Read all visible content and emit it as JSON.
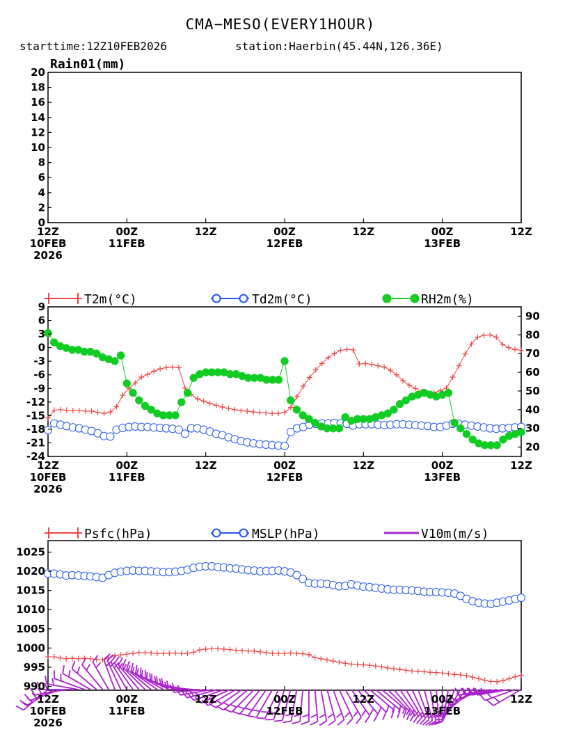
{
  "header": {
    "title": "CMA−MESO(EVERY1HOUR)",
    "subtitle_start": "starttime:12Z10FEB2026",
    "subtitle_station": "station:Haerbin(45.44N,126.36E)"
  },
  "x_axis": {
    "ticks": [
      {
        "hour": 0,
        "line1": "12Z",
        "line2": "10FEB",
        "line3": "2026"
      },
      {
        "hour": 12,
        "line1": "00Z",
        "line2": "11FEB",
        "line3": ""
      },
      {
        "hour": 24,
        "line1": "12Z",
        "line2": "",
        "line3": ""
      },
      {
        "hour": 36,
        "line1": "00Z",
        "line2": "12FEB",
        "line3": ""
      },
      {
        "hour": 48,
        "line1": "12Z",
        "line2": "",
        "line3": ""
      },
      {
        "hour": 60,
        "line1": "00Z",
        "line2": "13FEB",
        "line3": ""
      },
      {
        "hour": 72,
        "line1": "12Z",
        "line2": "",
        "line3": ""
      }
    ]
  },
  "colors": {
    "t2m": "#ee4444",
    "td2m": "#2255ee",
    "rh2m": "#11cc22",
    "psfc": "#ee4444",
    "mslp": "#2255ee",
    "wind": "#aa22cc"
  },
  "chart_data": [
    {
      "type": "bar",
      "title": "Rain01(mm)",
      "ylim": [
        0,
        20
      ],
      "yticks": [
        "0",
        "2",
        "4",
        "6",
        "8",
        "10",
        "12",
        "14",
        "16",
        "18",
        "20"
      ],
      "x_hours": [
        0,
        72
      ],
      "values": []
    },
    {
      "type": "line",
      "legend": {
        "t2m": "T2m(°C)",
        "td2m": "Td2m(°C)",
        "rh2m": "RH2m(%)"
      },
      "ylim_left": [
        -24,
        9
      ],
      "yticks_left": [
        "-24",
        "-21",
        "-18",
        "-15",
        "-12",
        "-9",
        "-6",
        "-3",
        "0",
        "3",
        "6",
        "9"
      ],
      "ylim_right": [
        15,
        95
      ],
      "yticks_right": [
        "20",
        "30",
        "40",
        "50",
        "60",
        "70",
        "80",
        "90"
      ],
      "series": [
        {
          "name": "T2m(°C)",
          "axis": "left",
          "marker": "plus",
          "values": [
            -15.5,
            -13.8,
            -13.7,
            -13.8,
            -13.9,
            -13.9,
            -14.0,
            -14.0,
            -14.3,
            -14.5,
            -14.2,
            -13.0,
            -10.5,
            -9.0,
            -7.8,
            -6.5,
            -5.9,
            -5.2,
            -4.7,
            -4.4,
            -4.3,
            -4.4,
            -8.9,
            -10.3,
            -11.3,
            -11.8,
            -12.3,
            -12.7,
            -13.1,
            -13.4,
            -13.7,
            -13.9,
            -14.0,
            -14.2,
            -14.3,
            -14.4,
            -14.5,
            -14.5,
            -14.3,
            -13.2,
            -10.8,
            -8.5,
            -6.6,
            -4.9,
            -3.5,
            -2.2,
            -1.3,
            -0.6,
            -0.4,
            -0.5,
            -3.6,
            -3.5,
            -3.7,
            -4.0,
            -4.3,
            -5.0,
            -6.0,
            -7.3,
            -8.3,
            -9.0,
            -9.7,
            -10.0,
            -9.9,
            -9.5,
            -8.9,
            -6.5,
            -4.0,
            -1.4,
            0.8,
            2.3,
            2.7,
            2.8,
            2.3,
            0.7,
            0.0,
            -0.4,
            -0.6
          ]
        },
        {
          "name": "Td2m(°C)",
          "axis": "left",
          "marker": "circle",
          "values": [
            -18.2,
            -16.7,
            -17.0,
            -17.3,
            -17.6,
            -17.8,
            -18.1,
            -18.4,
            -18.9,
            -19.5,
            -19.6,
            -18.1,
            -17.7,
            -17.5,
            -17.4,
            -17.5,
            -17.5,
            -17.6,
            -17.7,
            -17.8,
            -17.9,
            -18.1,
            -19.0,
            -17.8,
            -17.8,
            -18.1,
            -18.5,
            -19.0,
            -19.3,
            -19.8,
            -20.2,
            -20.6,
            -20.9,
            -21.1,
            -21.3,
            -21.4,
            -21.5,
            -21.6,
            -21.7,
            -18.6,
            -17.8,
            -17.5,
            -17.0,
            -16.8,
            -16.7,
            -16.7,
            -16.6,
            -16.7,
            -16.8,
            -17.2,
            -16.9,
            -16.9,
            -16.9,
            -17.0,
            -17.1,
            -17.0,
            -16.9,
            -16.9,
            -17.0,
            -17.1,
            -17.2,
            -17.3,
            -17.5,
            -17.5,
            -17.2,
            -16.8,
            -16.8,
            -17.0,
            -17.2,
            -17.4,
            -17.6,
            -17.8,
            -17.9,
            -17.8,
            -17.7,
            -17.6,
            -17.5
          ]
        },
        {
          "name": "RH2m(%)",
          "axis": "right",
          "marker": "dot",
          "values": [
            81,
            76,
            74,
            73,
            72,
            72,
            71,
            71,
            70,
            68,
            67,
            66,
            69,
            54,
            49,
            45,
            42,
            40,
            38,
            37,
            37,
            37,
            44,
            49,
            57,
            59,
            60,
            60,
            60,
            60,
            59,
            59,
            58,
            57,
            57,
            57,
            56,
            56,
            56,
            66,
            45,
            40,
            37,
            35,
            33,
            31,
            30,
            30,
            30,
            36,
            34,
            35,
            35,
            35,
            36,
            37,
            38,
            40,
            43,
            45,
            47,
            48,
            49,
            48,
            47,
            48,
            49,
            33,
            30,
            27,
            24,
            22,
            21,
            21,
            21,
            24,
            26,
            27,
            28
          ]
        }
      ]
    },
    {
      "type": "line",
      "legend": {
        "psfc": "Psfc(hPa)",
        "mslp": "MSLP(hPa)",
        "wind": "V10m(m/s)"
      },
      "ylim": [
        989,
        1028
      ],
      "yticks": [
        "990",
        "995",
        "1000",
        "1005",
        "1010",
        "1015",
        "1020",
        "1025"
      ],
      "series": [
        {
          "name": "Psfc(hPa)",
          "marker": "plus",
          "values": [
            997.7,
            997.7,
            997.4,
            997.2,
            997.3,
            997.2,
            997.3,
            997.2,
            997.0,
            996.9,
            997.4,
            998.0,
            998.2,
            998.4,
            998.6,
            998.8,
            998.8,
            998.7,
            998.6,
            998.6,
            998.6,
            998.7,
            998.6,
            998.6,
            998.9,
            999.5,
            999.7,
            999.8,
            999.8,
            999.7,
            999.6,
            999.4,
            999.3,
            999.2,
            999.2,
            999.0,
            998.8,
            998.6,
            998.6,
            998.6,
            998.7,
            998.6,
            998.5,
            998.3,
            997.5,
            997.2,
            996.9,
            996.6,
            996.3,
            996.0,
            995.8,
            995.7,
            995.6,
            995.5,
            995.3,
            995.1,
            994.8,
            994.6,
            994.4,
            994.2,
            994.0,
            993.9,
            993.8,
            993.7,
            993.6,
            993.5,
            993.3,
            993.1,
            993.0,
            992.8,
            992.4,
            992.0,
            991.6,
            991.3,
            991.2,
            991.5,
            992.0,
            992.5,
            992.9
          ]
        },
        {
          "name": "MSLP(hPa)",
          "marker": "circle",
          "values": [
            1019.4,
            1019.4,
            1019.2,
            1018.9,
            1019.0,
            1018.9,
            1018.8,
            1018.7,
            1018.5,
            1018.3,
            1019.0,
            1019.6,
            1019.9,
            1020.1,
            1020.2,
            1020.1,
            1020.1,
            1020.0,
            1019.9,
            1019.8,
            1019.8,
            1019.9,
            1020.1,
            1020.4,
            1020.9,
            1021.2,
            1021.3,
            1021.3,
            1021.1,
            1021.0,
            1020.8,
            1020.7,
            1020.5,
            1020.3,
            1020.2,
            1020.0,
            1020.1,
            1020.1,
            1020.2,
            1020.0,
            1019.7,
            1019.0,
            1018.0,
            1017.0,
            1016.8,
            1016.8,
            1016.7,
            1016.4,
            1016.1,
            1016.2,
            1016.6,
            1016.3,
            1016.0,
            1015.9,
            1015.7,
            1015.5,
            1015.3,
            1015.2,
            1015.2,
            1015.1,
            1015.0,
            1014.9,
            1014.7,
            1014.6,
            1014.6,
            1014.5,
            1014.4,
            1014.2,
            1013.6,
            1012.8,
            1012.2,
            1011.8,
            1011.6,
            1011.5,
            1011.8,
            1012.1,
            1012.4,
            1012.8,
            1013.1
          ]
        },
        {
          "name": "V10m(m/s)",
          "marker": "barb",
          "direction_deg": [
            230,
            240,
            250,
            260,
            270,
            280,
            290,
            300,
            310,
            320,
            330,
            340,
            335,
            330,
            325,
            320,
            315,
            310,
            305,
            300,
            295,
            290,
            285,
            280,
            275,
            270,
            265,
            260,
            255,
            250,
            245,
            240,
            235,
            230,
            225,
            220,
            215,
            210,
            205,
            200,
            195,
            190,
            185,
            180,
            175,
            170,
            165,
            160,
            155,
            150,
            145,
            140,
            135,
            130,
            130,
            130,
            135,
            140,
            145,
            150,
            155,
            160,
            165,
            170,
            175,
            180,
            190,
            200,
            210,
            220,
            230,
            240,
            250,
            260,
            260,
            260,
            260,
            250,
            240
          ]
        }
      ]
    }
  ]
}
